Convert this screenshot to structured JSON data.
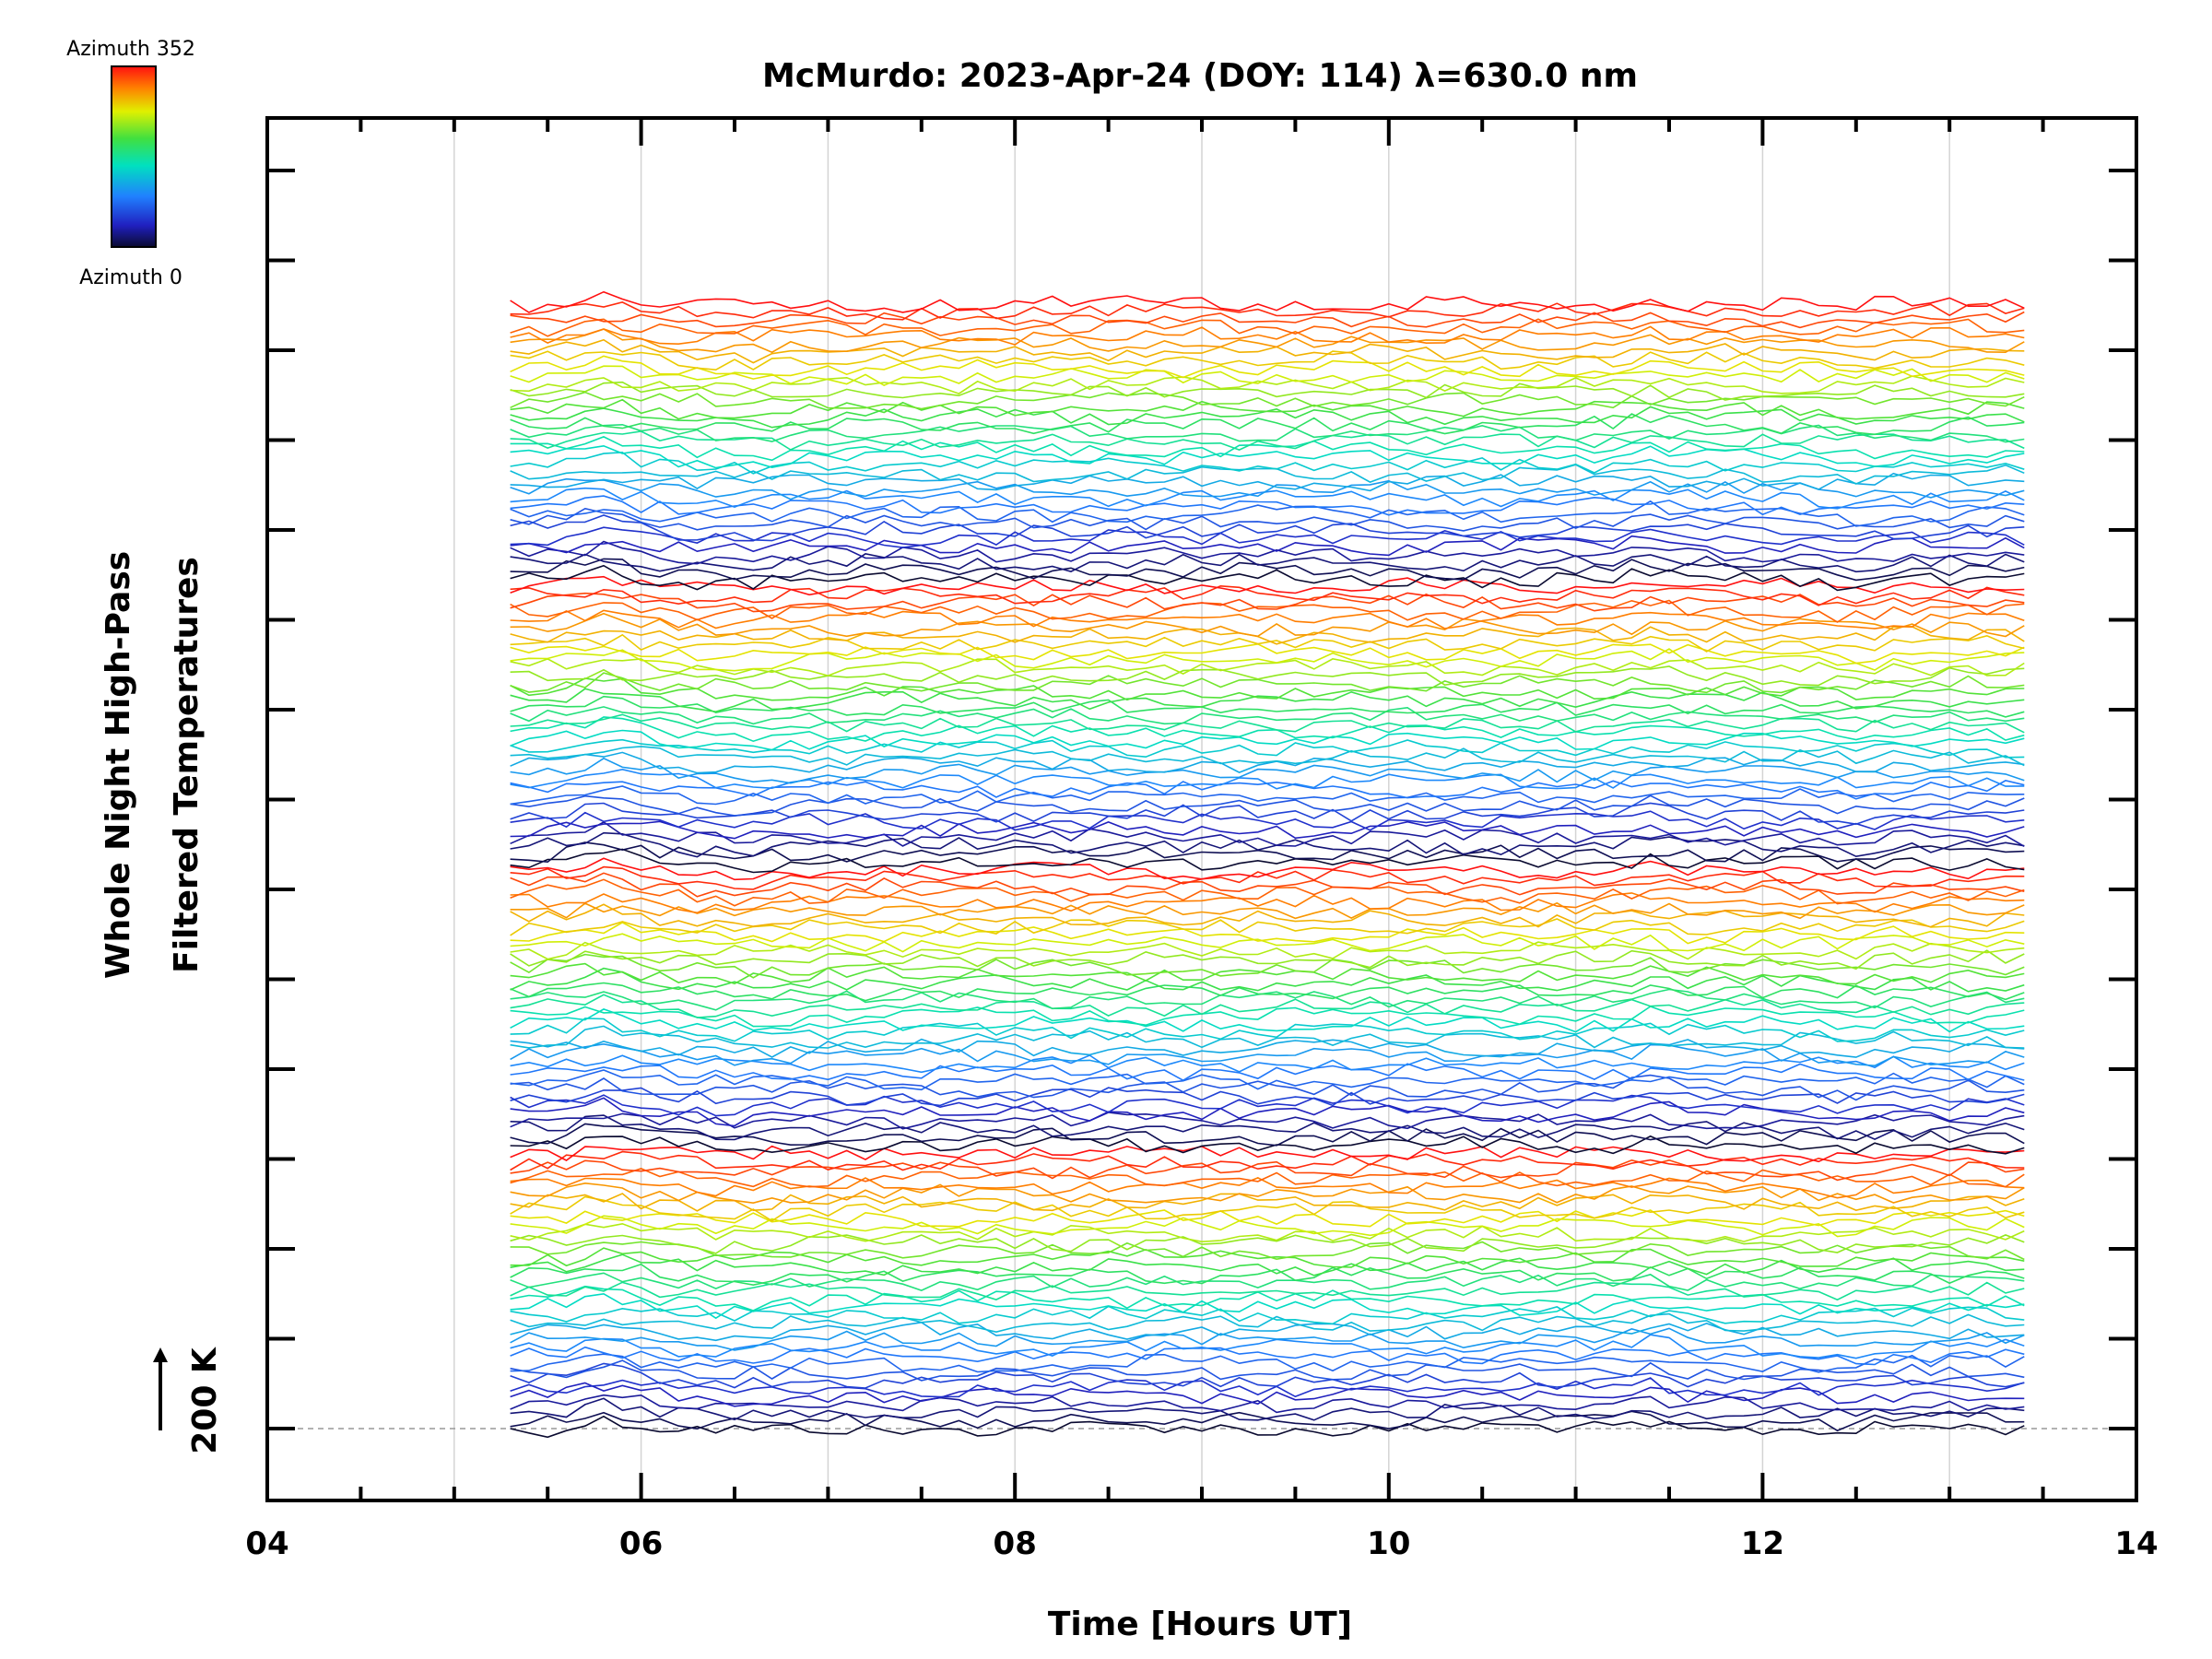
{
  "chart_data": {
    "type": "line",
    "title": "McMurdo: 2023-Apr-24 (DOY: 114) λ=630.0 nm",
    "xlabel": "Time [Hours UT]",
    "ylabel_line1": "Whole Night High-Pass",
    "ylabel_line2": "Filtered Temperatures",
    "xlim": [
      4,
      14
    ],
    "x_ticks": [
      "04",
      "06",
      "08",
      "10",
      "12",
      "14"
    ],
    "x_tick_values": [
      4,
      6,
      8,
      10,
      12,
      14
    ],
    "scale_bar_label": "200 K",
    "colorbar": {
      "top_label": "Azimuth 352",
      "bottom_label": "Azimuth 0",
      "min": 0,
      "max": 352
    },
    "colors": {
      "low": "#0a0a30",
      "mid": "#00e0c0",
      "high": "#ff2000"
    },
    "x_start": 5.3,
    "x_end": 13.45,
    "sample_interval_hours": 0.1,
    "num_series": 140,
    "series_step_k": 10,
    "baseline_k": 0,
    "vertical_gridlines": [
      5,
      6,
      7,
      8,
      9,
      10,
      11,
      12,
      13
    ],
    "baseline_dashed": true
  }
}
